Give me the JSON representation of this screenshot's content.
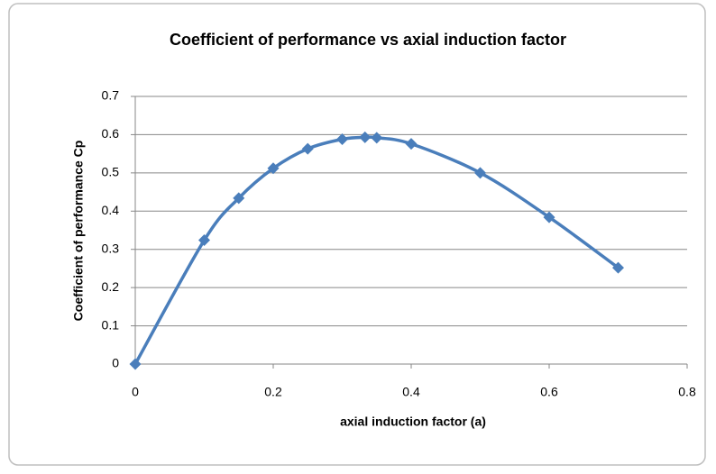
{
  "chart_data": {
    "type": "line",
    "title": "Coefficient of performance  vs axial induction factor",
    "x_label": "axial induction factor (a)",
    "y_label": "Coefficient of performance Cp",
    "x": [
      0,
      0.1,
      0.15,
      0.2,
      0.25,
      0.3,
      0.333,
      0.35,
      0.4,
      0.5,
      0.6,
      0.7
    ],
    "values": [
      0,
      0.324,
      0.434,
      0.512,
      0.563,
      0.588,
      0.593,
      0.592,
      0.576,
      0.5,
      0.384,
      0.252
    ],
    "color": "#4a7ebb",
    "xlim": [
      0,
      0.8
    ],
    "xticks": [
      0,
      0.2,
      0.4,
      0.6,
      0.8
    ],
    "ylim": [
      0,
      0.7
    ],
    "yticks": [
      0,
      0.1,
      0.2,
      0.3,
      0.4,
      0.5,
      0.6,
      0.7
    ],
    "grid": true,
    "smooth": true
  }
}
